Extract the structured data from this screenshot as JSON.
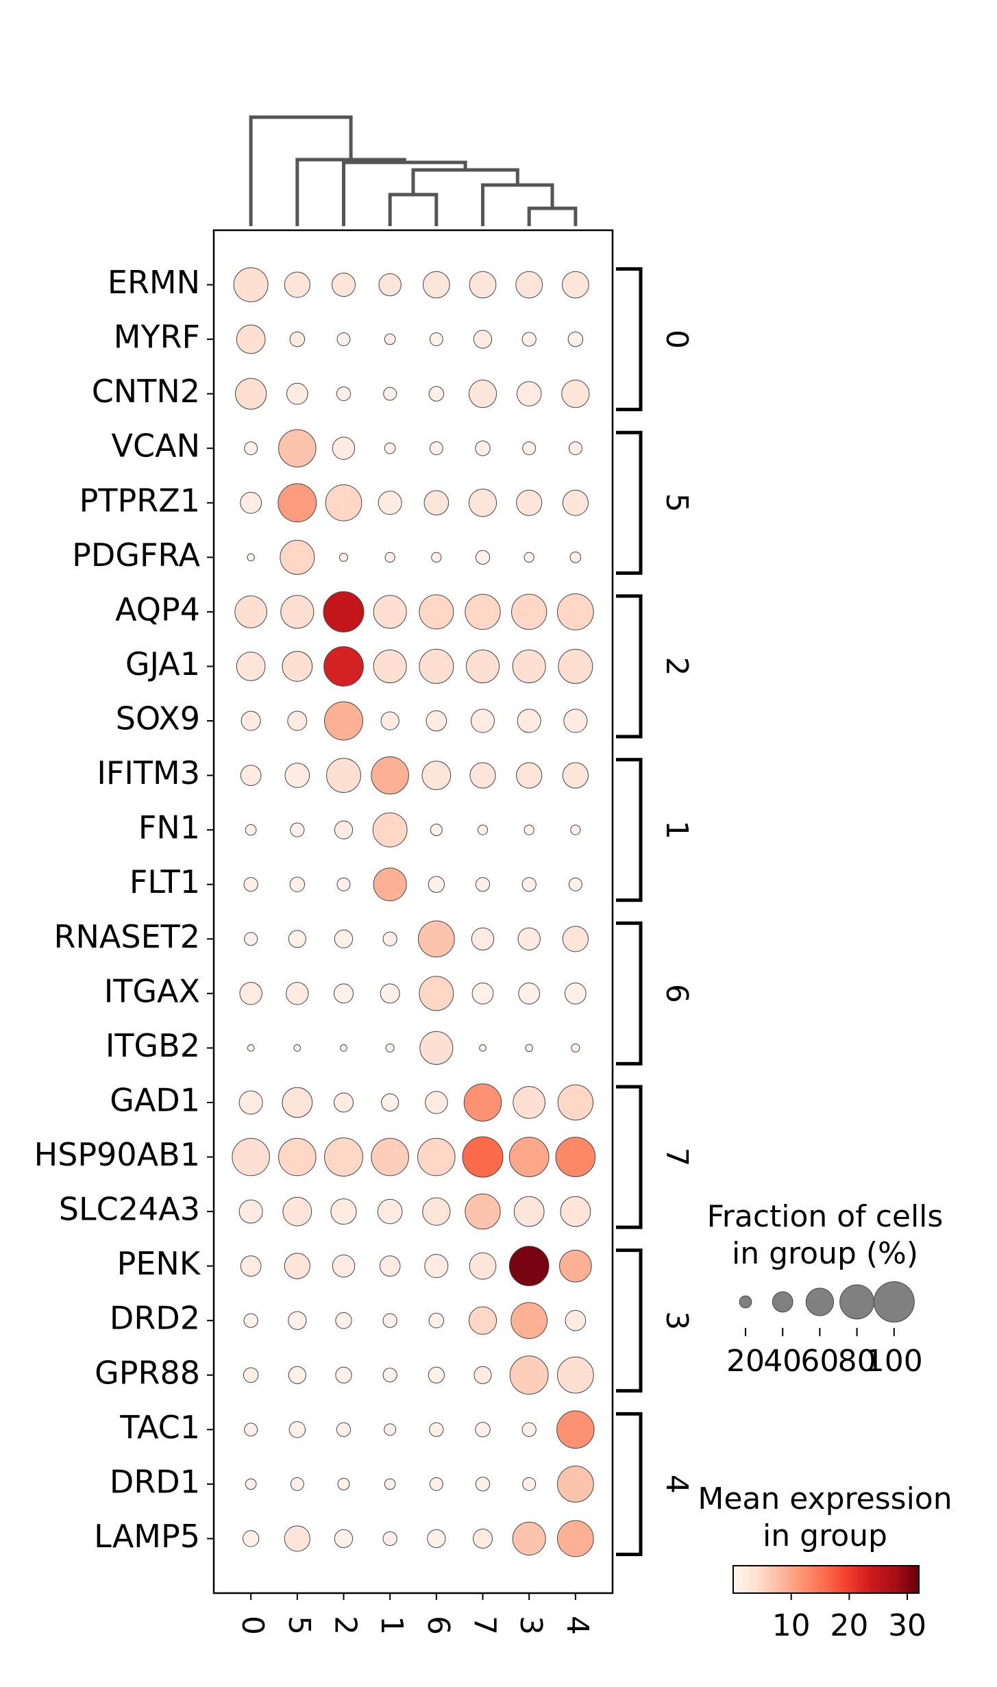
{
  "chart_data": {
    "type": "dotplot",
    "categories": [
      "0",
      "5",
      "2",
      "1",
      "6",
      "7",
      "3",
      "4"
    ],
    "gene_groups": [
      {
        "label": "0",
        "genes": [
          "ERMN",
          "MYRF",
          "CNTN2"
        ]
      },
      {
        "label": "5",
        "genes": [
          "VCAN",
          "PTPRZ1",
          "PDGFRA"
        ]
      },
      {
        "label": "2",
        "genes": [
          "AQP4",
          "GJA1",
          "SOX9"
        ]
      },
      {
        "label": "1",
        "genes": [
          "IFITM3",
          "FN1",
          "FLT1"
        ]
      },
      {
        "label": "6",
        "genes": [
          "RNASET2",
          "ITGAX",
          "ITGB2"
        ]
      },
      {
        "label": "7",
        "genes": [
          "GAD1",
          "HSP90AB1",
          "SLC24A3"
        ]
      },
      {
        "label": "3",
        "genes": [
          "PENK",
          "DRD2",
          "GPR88"
        ]
      },
      {
        "label": "4",
        "genes": [
          "TAC1",
          "DRD1",
          "LAMP5"
        ]
      }
    ],
    "fraction": [
      [
        80,
        54,
        48,
        45,
        57,
        57,
        57,
        57
      ],
      [
        63,
        26,
        22,
        17,
        22,
        34,
        24,
        26
      ],
      [
        70,
        42,
        24,
        22,
        26,
        60,
        51,
        60
      ],
      [
        22,
        90,
        45,
        17,
        22,
        26,
        22,
        22
      ],
      [
        42,
        93,
        86,
        48,
        51,
        60,
        54,
        54
      ],
      [
        10,
        80,
        12,
        15,
        15,
        24,
        15,
        17
      ],
      [
        73,
        76,
        100,
        76,
        80,
        83,
        83,
        86
      ],
      [
        63,
        67,
        97,
        76,
        80,
        76,
        76,
        80
      ],
      [
        37,
        37,
        93,
        34,
        40,
        48,
        48,
        48
      ],
      [
        40,
        51,
        80,
        90,
        63,
        54,
        54,
        54
      ],
      [
        17,
        24,
        34,
        80,
        19,
        15,
        15,
        15
      ],
      [
        24,
        26,
        22,
        76,
        29,
        24,
        24,
        22
      ],
      [
        22,
        32,
        34,
        24,
        86,
        45,
        45,
        54
      ],
      [
        45,
        45,
        37,
        37,
        80,
        42,
        42,
        42
      ],
      [
        9,
        9,
        9,
        12,
        76,
        9,
        10,
        12
      ],
      [
        48,
        67,
        37,
        32,
        45,
        90,
        73,
        83
      ],
      [
        90,
        90,
        93,
        90,
        90,
        100,
        97,
        97
      ],
      [
        48,
        63,
        54,
        51,
        60,
        83,
        67,
        67
      ],
      [
        40,
        54,
        45,
        40,
        48,
        57,
        97,
        73
      ],
      [
        24,
        34,
        29,
        24,
        26,
        60,
        86,
        40
      ],
      [
        26,
        32,
        29,
        24,
        29,
        32,
        93,
        86
      ],
      [
        22,
        29,
        24,
        19,
        24,
        26,
        24,
        90
      ],
      [
        17,
        22,
        19,
        17,
        22,
        24,
        22,
        86
      ],
      [
        29,
        54,
        34,
        24,
        34,
        37,
        76,
        86
      ]
    ],
    "mean": [
      [
        4,
        3,
        3,
        3,
        3,
        3,
        3,
        3
      ],
      [
        4,
        2,
        1,
        1,
        1,
        2,
        1,
        1
      ],
      [
        4,
        2,
        1,
        1,
        1,
        3,
        2,
        3
      ],
      [
        1,
        7,
        2,
        1,
        1,
        1,
        1,
        1
      ],
      [
        2,
        11,
        5,
        2,
        3,
        3,
        3,
        3
      ],
      [
        1,
        5,
        1,
        1,
        1,
        1,
        1,
        1
      ],
      [
        4,
        4,
        25,
        4,
        5,
        5,
        5,
        5
      ],
      [
        3,
        4,
        23,
        4,
        4,
        4,
        4,
        4
      ],
      [
        2,
        2,
        9,
        2,
        2,
        2,
        2,
        2
      ],
      [
        2,
        2,
        4,
        9,
        3,
        3,
        3,
        3
      ],
      [
        1,
        1,
        2,
        5,
        1,
        1,
        1,
        1
      ],
      [
        1,
        1,
        1,
        9,
        1,
        1,
        1,
        1
      ],
      [
        1,
        1,
        1,
        1,
        7,
        2,
        2,
        3
      ],
      [
        2,
        2,
        1,
        1,
        5,
        1,
        1,
        1
      ],
      [
        1,
        1,
        1,
        1,
        4,
        1,
        1,
        1
      ],
      [
        2,
        3,
        2,
        1,
        2,
        12,
        4,
        5
      ],
      [
        4,
        5,
        5,
        6,
        5,
        16,
        10,
        13
      ],
      [
        2,
        3,
        2,
        2,
        3,
        7,
        3,
        3
      ],
      [
        2,
        3,
        2,
        2,
        2,
        3,
        31,
        9
      ],
      [
        1,
        1,
        1,
        1,
        1,
        5,
        9,
        2
      ],
      [
        1,
        1,
        1,
        1,
        1,
        2,
        6,
        4
      ],
      [
        1,
        1,
        1,
        1,
        1,
        1,
        1,
        12
      ],
      [
        1,
        1,
        1,
        1,
        1,
        1,
        1,
        7
      ],
      [
        1,
        3,
        1,
        1,
        1,
        2,
        7,
        9
      ]
    ],
    "colormap": [
      "#fff5f0",
      "#fee0d2",
      "#fcbba1",
      "#fc9272",
      "#fb6a4a",
      "#ef3b2c",
      "#cb181d",
      "#a50f15",
      "#67000d"
    ],
    "size_legend": {
      "title": [
        "Fraction of cells",
        "in group (%)"
      ],
      "values": [
        20,
        40,
        60,
        80,
        100
      ],
      "color": "#808080"
    },
    "colorbar": {
      "title": [
        "Mean expression",
        "in group"
      ],
      "clim": [
        0,
        32
      ],
      "ticks": [
        10,
        20,
        30
      ]
    }
  }
}
